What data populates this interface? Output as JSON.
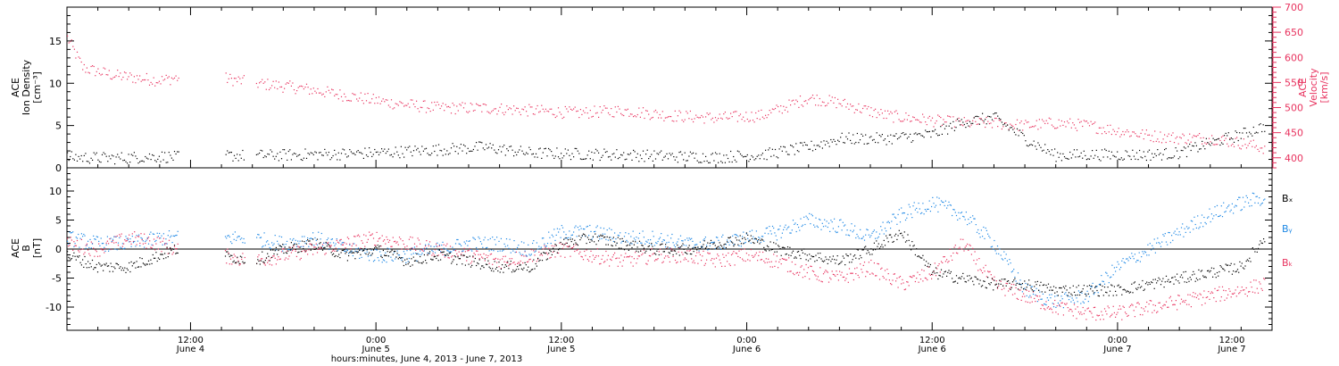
{
  "colors": {
    "density": "#000000",
    "velocity": "#e8335f",
    "bx": "#000000",
    "by": "#1e88e5",
    "bz": "#e8335f",
    "axis": "#000000"
  },
  "chart_data": [
    {
      "type": "scatter",
      "panel": "top",
      "left_ylabel": [
        "ACE",
        "Ion Density",
        "[cm⁻³]"
      ],
      "right_ylabel": [
        "ACE",
        "Velocity",
        "[km/s]"
      ],
      "ylim_left": [
        0,
        19
      ],
      "ylim_right": [
        380,
        700
      ],
      "yticks_left": [
        0,
        5,
        10,
        15
      ],
      "yticks_right": [
        400,
        450,
        500,
        550,
        600,
        650,
        700
      ],
      "xlim_hours": [
        0,
        78
      ],
      "data_gaps_hours": [
        [
          7.2,
          10.2
        ],
        [
          11.5,
          12.2
        ]
      ],
      "series": [
        {
          "key": "density",
          "axis": "left",
          "x": [
            0,
            3,
            6,
            7,
            10,
            12,
            15,
            18,
            21,
            24,
            27,
            30,
            33,
            36,
            39,
            42,
            45,
            48,
            50,
            53,
            56,
            58,
            60,
            62,
            64,
            66,
            68,
            70,
            72,
            74,
            76,
            77.5
          ],
          "y": [
            1.3,
            1.2,
            1.4,
            1.3,
            1.5,
            1.5,
            1.6,
            1.7,
            1.9,
            2.2,
            2.5,
            1.8,
            1.7,
            1.6,
            1.4,
            1.3,
            1.6,
            2.5,
            3.5,
            3.5,
            4.0,
            5.5,
            6.0,
            3.5,
            1.5,
            1.6,
            1.6,
            1.6,
            1.8,
            3.0,
            4.0,
            5.0
          ]
        },
        {
          "key": "velocity",
          "axis": "right",
          "x": [
            0,
            1,
            3,
            6,
            7,
            10,
            12,
            15,
            18,
            21,
            24,
            27,
            30,
            33,
            36,
            39,
            42,
            45,
            48,
            50,
            53,
            56,
            58,
            60,
            62,
            64,
            66,
            68,
            70,
            72,
            74,
            76,
            77.5
          ],
          "y": [
            640,
            580,
            565,
            555,
            560,
            560,
            550,
            540,
            525,
            510,
            500,
            500,
            495,
            490,
            495,
            485,
            480,
            485,
            520,
            510,
            485,
            475,
            470,
            470,
            465,
            470,
            465,
            455,
            445,
            440,
            440,
            430,
            420
          ]
        }
      ]
    },
    {
      "type": "scatter",
      "panel": "bottom",
      "ylabel": [
        "ACE",
        "B",
        "[nT]"
      ],
      "ylim": [
        -14,
        14
      ],
      "yticks": [
        -10,
        -5,
        0,
        5,
        10
      ],
      "zero_line": true,
      "xlim_hours": [
        0,
        78
      ],
      "xticks": [
        "12:00",
        "0:00",
        "12:00",
        "0:00",
        "12:00",
        "0:00",
        "12:00"
      ],
      "xtick_dates": [
        "June 4",
        "June 5",
        "June 5",
        "June 6",
        "June 6",
        "June 7",
        "June 7"
      ],
      "xtick_hours": [
        8,
        20,
        32,
        44,
        56,
        68,
        80
      ],
      "xlabel": "hours:minutes, June  4, 2013 - June  7, 2013",
      "legend": [
        "Bₓ",
        "Bᵧ",
        "Bₖ"
      ],
      "legend_placement": "right",
      "data_gaps_hours": [
        [
          7.2,
          10.2
        ],
        [
          11.5,
          12.2
        ]
      ],
      "series": [
        {
          "key": "bx",
          "x": [
            0,
            2,
            4,
            6,
            7,
            10,
            12,
            14,
            16,
            18,
            20,
            22,
            24,
            26,
            28,
            30,
            32,
            34,
            36,
            38,
            40,
            42,
            44,
            46,
            48,
            50,
            52,
            54,
            56,
            58,
            60,
            62,
            64,
            66,
            68,
            70,
            72,
            74,
            76,
            77.5
          ],
          "y": [
            -1,
            -3,
            -3,
            -1,
            0,
            -1,
            -2,
            0,
            1,
            -1,
            0,
            -2,
            -1,
            -2,
            -3,
            -3,
            1,
            2,
            1,
            0,
            0,
            1,
            2,
            0,
            -1,
            -2,
            0,
            3,
            -4,
            -5,
            -6,
            -6,
            -7,
            -7,
            -7,
            -6,
            -5,
            -4,
            -3,
            2
          ]
        },
        {
          "key": "by",
          "x": [
            0,
            2,
            4,
            6,
            7,
            10,
            12,
            14,
            16,
            18,
            20,
            22,
            24,
            26,
            28,
            30,
            32,
            34,
            36,
            38,
            40,
            42,
            44,
            46,
            48,
            50,
            52,
            54,
            56,
            58,
            60,
            62,
            64,
            66,
            68,
            70,
            72,
            74,
            76,
            77.5
          ],
          "y": [
            2,
            1,
            1,
            2,
            2,
            2,
            2,
            1,
            2,
            0,
            -1,
            -1,
            0,
            1,
            1,
            0,
            3,
            3,
            2,
            2,
            1,
            1,
            2,
            3,
            5,
            4,
            2,
            6,
            8,
            6,
            1,
            -7,
            -9,
            -8,
            -3,
            0,
            3,
            6,
            8,
            9
          ]
        },
        {
          "key": "bz",
          "x": [
            0,
            2,
            4,
            6,
            7,
            10,
            12,
            14,
            16,
            18,
            20,
            22,
            24,
            26,
            28,
            30,
            32,
            34,
            36,
            38,
            40,
            42,
            44,
            46,
            48,
            50,
            52,
            54,
            56,
            58,
            60,
            62,
            64,
            66,
            68,
            70,
            72,
            74,
            76,
            77.5
          ],
          "y": [
            1,
            0,
            2,
            1,
            0,
            -1,
            -2,
            -1,
            0,
            1,
            2,
            1,
            0,
            -1,
            -2,
            -1,
            0,
            -1,
            -2,
            -1,
            -1,
            -2,
            -1,
            -2,
            -4,
            -5,
            -3,
            -6,
            -4,
            1,
            -6,
            -8,
            -10,
            -11,
            -11,
            -10,
            -9,
            -8,
            -7,
            -6
          ]
        }
      ]
    }
  ]
}
